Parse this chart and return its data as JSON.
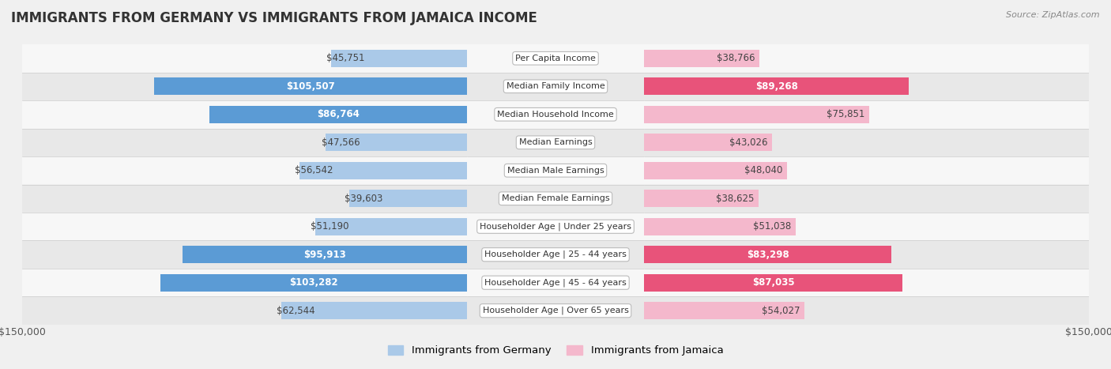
{
  "title": "IMMIGRANTS FROM GERMANY VS IMMIGRANTS FROM JAMAICA INCOME",
  "source": "Source: ZipAtlas.com",
  "categories": [
    "Per Capita Income",
    "Median Family Income",
    "Median Household Income",
    "Median Earnings",
    "Median Male Earnings",
    "Median Female Earnings",
    "Householder Age | Under 25 years",
    "Householder Age | 25 - 44 years",
    "Householder Age | 45 - 64 years",
    "Householder Age | Over 65 years"
  ],
  "germany_values": [
    45751,
    105507,
    86764,
    47566,
    56542,
    39603,
    51190,
    95913,
    103282,
    62544
  ],
  "jamaica_values": [
    38766,
    89268,
    75851,
    43026,
    48040,
    38625,
    51038,
    83298,
    87035,
    54027
  ],
  "germany_labels": [
    "$45,751",
    "$105,507",
    "$86,764",
    "$47,566",
    "$56,542",
    "$39,603",
    "$51,190",
    "$95,913",
    "$103,282",
    "$62,544"
  ],
  "jamaica_labels": [
    "$38,766",
    "$89,268",
    "$75,851",
    "$43,026",
    "$48,040",
    "$38,625",
    "$51,038",
    "$83,298",
    "$87,035",
    "$54,027"
  ],
  "germany_color_light": "#aac9e8",
  "germany_color_dark": "#5b9bd5",
  "jamaica_color_light": "#f4b8cc",
  "jamaica_color_dark": "#e8537a",
  "germany_dark_threshold": 80000,
  "jamaica_dark_threshold": 80000,
  "max_value": 150000,
  "legend_germany": "Immigrants from Germany",
  "legend_jamaica": "Immigrants from Jamaica",
  "background_color": "#f0f0f0",
  "row_light_color": "#f7f7f7",
  "row_dark_color": "#e8e8e8",
  "axis_label": "$150,000",
  "label_fontsize": 8.5,
  "cat_fontsize": 8.0,
  "title_fontsize": 12,
  "source_fontsize": 8
}
